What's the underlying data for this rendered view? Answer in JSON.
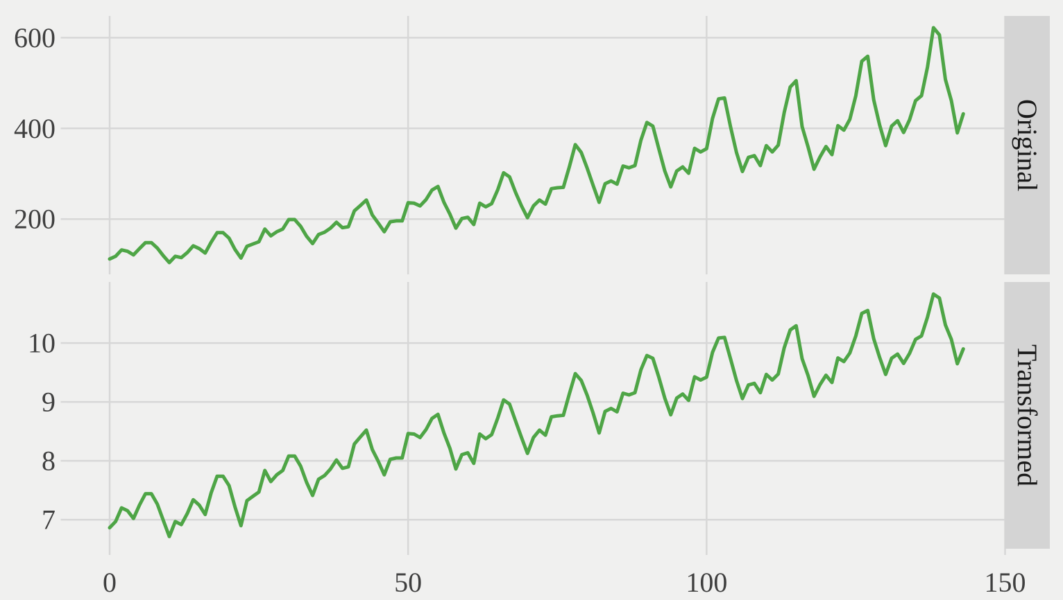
{
  "chart_data": {
    "type": "line",
    "title": "",
    "xlabel": "",
    "ylabel": "",
    "x_is_index": true,
    "n_points": 144,
    "xticks": [
      0,
      50,
      100,
      150
    ],
    "xlim": [
      -7.15,
      150.15
    ],
    "grid": "major-only",
    "legend": "none",
    "facets": [
      {
        "label": "Original",
        "yticks": [
          200,
          400,
          600
        ],
        "ylim": [
          78.1,
          647.9
        ]
      },
      {
        "label": "Transformed",
        "yticks": [
          7,
          8,
          9,
          10
        ],
        "ylim": [
          6.507,
          11.036
        ]
      }
    ],
    "transform": {
      "type": "box-cox",
      "lambda": 0.15
    },
    "values": [
      112,
      118,
      132,
      129,
      121,
      135,
      148,
      148,
      136,
      119,
      104,
      118,
      115,
      126,
      141,
      135,
      125,
      149,
      170,
      170,
      158,
      133,
      114,
      140,
      145,
      150,
      178,
      163,
      172,
      178,
      199,
      199,
      184,
      162,
      146,
      166,
      171,
      180,
      193,
      181,
      183,
      218,
      230,
      242,
      209,
      191,
      172,
      194,
      196,
      196,
      236,
      235,
      229,
      243,
      264,
      272,
      237,
      211,
      180,
      201,
      204,
      188,
      235,
      227,
      234,
      264,
      302,
      293,
      259,
      229,
      203,
      229,
      242,
      233,
      267,
      269,
      270,
      315,
      364,
      347,
      312,
      274,
      237,
      278,
      284,
      277,
      317,
      313,
      318,
      374,
      413,
      405,
      355,
      306,
      271,
      306,
      315,
      301,
      356,
      348,
      355,
      422,
      465,
      467,
      404,
      347,
      305,
      336,
      340,
      318,
      362,
      348,
      363,
      435,
      491,
      505,
      404,
      359,
      310,
      337,
      360,
      342,
      406,
      396,
      420,
      472,
      548,
      559,
      463,
      407,
      362,
      405,
      417,
      391,
      419,
      461,
      472,
      535,
      622,
      606,
      508,
      461,
      390,
      432
    ],
    "colors": {
      "line": "#4ea546",
      "figure_background": "#f0f0ef",
      "panel_background": "#f0f0ef",
      "gridline": "#d7d7d7",
      "tick": "#d7d7d7",
      "strip_background": "#d4d4d4",
      "tick_label_text": "#3f3f3f",
      "strip_text": "#1a1a1a"
    }
  }
}
